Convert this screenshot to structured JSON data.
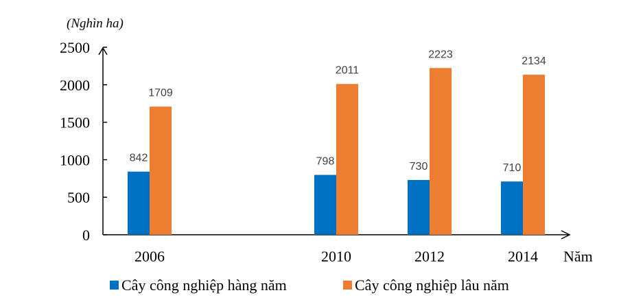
{
  "chart_data": {
    "type": "bar",
    "ylabel": "(Nghìn ha)",
    "xlabel": "Năm",
    "categories": [
      "2006",
      "2010",
      "2012",
      "2014"
    ],
    "x_positions": [
      2006,
      2010,
      2012,
      2014
    ],
    "series": [
      {
        "name": "Cây công nghiệp hàng năm",
        "color": "#0070C0",
        "values": [
          842,
          798,
          730,
          710
        ]
      },
      {
        "name": "Cây công nghiệp lâu năm",
        "color": "#ED7D31",
        "values": [
          1709,
          2011,
          2223,
          2134
        ]
      }
    ],
    "yticks": [
      0,
      500,
      1000,
      1500,
      2000,
      2500
    ],
    "ylim": [
      0,
      2500
    ],
    "grid": false,
    "data_labels": true,
    "legend_position": "bottom"
  }
}
